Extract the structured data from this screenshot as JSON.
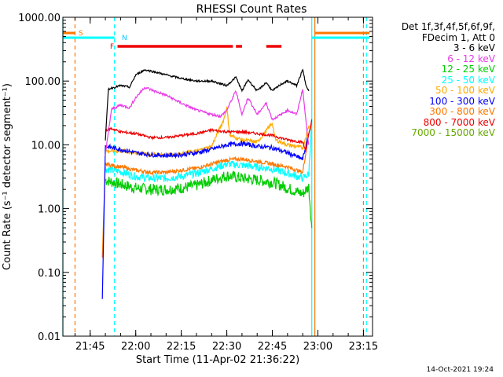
{
  "chart_data": {
    "type": "line",
    "title": "RHESSI Count Rates",
    "xlabel": "Start Time (11-Apr-02 21:36:22)",
    "ylabel": "Count Rate (s⁻¹ detector segment⁻¹)",
    "y_scale": "log",
    "ylim": [
      0.01,
      1000
    ],
    "y_ticks": [
      "0.01",
      "0.10",
      "1.00",
      "10.00",
      "100.00",
      "1000.00"
    ],
    "xlim": [
      "21:36",
      "23:18"
    ],
    "x_ticks": [
      "21:45",
      "22:00",
      "22:15",
      "22:30",
      "22:45",
      "23:00",
      "23:15"
    ],
    "legend_header": [
      "Det 1f,3f,4f,5f,6f,9f,",
      "FDecim 1, Att 0"
    ],
    "series": [
      {
        "name": "3 - 6 keV",
        "color": "#000000",
        "x": [
          "21:50",
          "21:51",
          "21:55",
          "21:58",
          "22:00",
          "22:03",
          "22:06",
          "22:10",
          "22:15",
          "22:20",
          "22:25",
          "22:30",
          "22:33",
          "22:35",
          "22:37",
          "22:40",
          "22:43",
          "22:45",
          "22:48",
          "22:50",
          "22:53",
          "22:55",
          "22:56",
          "22:57"
        ],
        "y": [
          12,
          75,
          85,
          80,
          125,
          150,
          140,
          125,
          110,
          100,
          100,
          85,
          115,
          70,
          105,
          70,
          95,
          70,
          90,
          100,
          85,
          150,
          90,
          70
        ]
      },
      {
        "name": "6 - 12 keV",
        "color": "#e83be8",
        "x": [
          "21:50",
          "21:52",
          "21:55",
          "21:58",
          "22:00",
          "22:03",
          "22:06",
          "22:10",
          "22:15",
          "22:20",
          "22:25",
          "22:28",
          "22:30",
          "22:33",
          "22:35",
          "22:37",
          "22:40",
          "22:43",
          "22:45",
          "22:48",
          "22:50",
          "22:53",
          "22:55",
          "22:56",
          "22:57"
        ],
        "y": [
          7,
          36,
          42,
          38,
          55,
          80,
          70,
          60,
          45,
          35,
          30,
          28,
          35,
          70,
          30,
          55,
          30,
          45,
          25,
          30,
          35,
          30,
          75,
          25,
          10
        ]
      },
      {
        "name": "12 - 25 keV",
        "color": "#00cc00",
        "x": [
          "21:50",
          "21:55",
          "22:00",
          "22:05",
          "22:10",
          "22:15",
          "22:20",
          "22:25",
          "22:30",
          "22:35",
          "22:40",
          "22:45",
          "22:50",
          "22:55",
          "22:57",
          "22:58"
        ],
        "y": [
          2.8,
          2.4,
          2.1,
          2.0,
          2.0,
          2.1,
          2.3,
          2.8,
          3.3,
          3.0,
          2.8,
          2.6,
          2.1,
          1.7,
          2.2,
          0.5
        ]
      },
      {
        "name": "25 - 50 keV",
        "color": "#00ffff",
        "x": [
          "21:50",
          "21:55",
          "22:00",
          "22:05",
          "22:10",
          "22:15",
          "22:20",
          "22:25",
          "22:30",
          "22:35",
          "22:40",
          "22:45",
          "22:50",
          "22:55",
          "22:57",
          "22:58"
        ],
        "y": [
          4.2,
          3.8,
          3.2,
          3.0,
          3.0,
          3.2,
          3.6,
          4.2,
          5.0,
          4.8,
          4.5,
          4.2,
          3.6,
          3.0,
          3.5,
          25
        ]
      },
      {
        "name": "50 - 100 keV",
        "color": "#ffaa00",
        "x": [
          "21:50",
          "21:55",
          "22:00",
          "22:05",
          "22:10",
          "22:15",
          "22:20",
          "22:25",
          "22:29",
          "22:30",
          "22:31",
          "22:35",
          "22:40",
          "22:45",
          "22:46",
          "22:50",
          "22:55",
          "22:57"
        ],
        "y": [
          8,
          8,
          7.5,
          7,
          7,
          7.2,
          8,
          9.5,
          25,
          38,
          14,
          12,
          11,
          22,
          12,
          10,
          9,
          20
        ]
      },
      {
        "name": "100 - 300 keV",
        "color": "#0000ff",
        "x": [
          "21:49",
          "21:50",
          "21:55",
          "22:00",
          "22:05",
          "22:10",
          "22:15",
          "22:20",
          "22:25",
          "22:30",
          "22:35",
          "22:40",
          "22:45",
          "22:50",
          "22:55",
          "22:57"
        ],
        "y": [
          0.04,
          9.5,
          8.5,
          7.5,
          7,
          6.8,
          7,
          7.5,
          8.5,
          10,
          10.5,
          9.5,
          9,
          7.5,
          6,
          15
        ]
      },
      {
        "name": "300 - 800 keV",
        "color": "#ff7700",
        "x": [
          "21:49",
          "21:50",
          "21:55",
          "22:00",
          "22:05",
          "22:10",
          "22:15",
          "22:20",
          "22:25",
          "22:30",
          "22:35",
          "22:40",
          "22:45",
          "22:50",
          "22:55",
          "22:57",
          "22:58"
        ],
        "y": [
          0.17,
          5,
          4.5,
          4,
          3.7,
          3.7,
          4,
          4.3,
          5,
          5.8,
          6,
          5.5,
          5,
          4.5,
          3.7,
          15,
          22
        ]
      },
      {
        "name": "800 - 7000 keV",
        "color": "#ee0000",
        "x": [
          "21:50",
          "21:52",
          "21:55",
          "22:00",
          "22:05",
          "22:10",
          "22:15",
          "22:20",
          "22:25",
          "22:30",
          "22:35",
          "22:40",
          "22:45",
          "22:50",
          "22:55",
          "22:56",
          "22:58"
        ],
        "y": [
          17,
          18,
          16,
          15,
          13,
          13,
          14,
          15,
          17,
          16,
          16,
          15,
          14,
          12,
          11,
          8,
          25
        ]
      },
      {
        "name": "7000 - 15000 keV",
        "color": "#66aa00",
        "x": [],
        "y": []
      }
    ],
    "top_bars": [
      {
        "label": "S",
        "color": "#ff7700",
        "segments": [
          [
            "21:36",
            "21:40"
          ],
          [
            "22:59",
            "23:17"
          ]
        ]
      },
      {
        "label": "N",
        "color": "#00ffff",
        "segments": [
          [
            "21:36",
            "21:53"
          ],
          [
            "22:58",
            "23:17"
          ]
        ]
      },
      {
        "label": "F",
        "color": "#ee0000",
        "segments": [
          [
            "21:54",
            "22:32"
          ],
          [
            "22:33",
            "22:35"
          ],
          [
            "22:43",
            "22:48"
          ]
        ]
      }
    ],
    "vertical_lines": [
      {
        "x": "21:36",
        "color": "#00ffff",
        "style": "solid"
      },
      {
        "x": "21:40",
        "color": "#ff7700",
        "style": "dashed"
      },
      {
        "x": "21:53",
        "color": "#00ffff",
        "style": "dashed"
      },
      {
        "x": "22:58",
        "color": "#00ffff",
        "style": "solid"
      },
      {
        "x": "22:59",
        "color": "#ff7700",
        "style": "solid"
      },
      {
        "x": "23:15",
        "color": "#ff7700",
        "style": "dashed"
      },
      {
        "x": "23:16",
        "color": "#00ffff",
        "style": "dashed"
      }
    ],
    "timestamp": "14-Oct-2021 19:24"
  }
}
